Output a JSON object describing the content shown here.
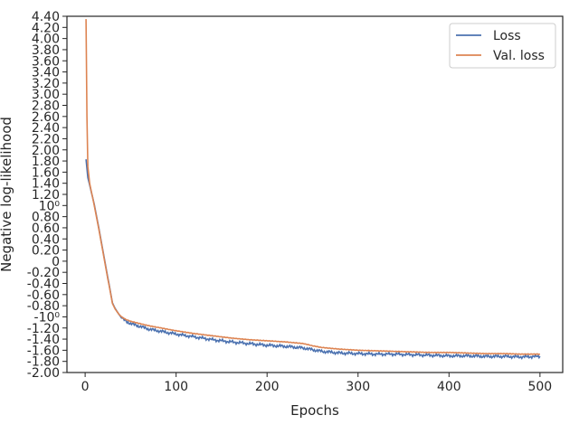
{
  "chart_data": {
    "type": "line",
    "xlabel": "Epochs",
    "ylabel": "Negative log-likelihood",
    "xlim": [
      -20,
      525
    ],
    "ylim": [
      -2.0,
      4.4
    ],
    "y_scale": "symlog",
    "x_ticks": [
      0,
      100,
      200,
      300,
      400,
      500
    ],
    "y_ticks": [
      {
        "value": 4.4,
        "label": "4.40"
      },
      {
        "value": 4.2,
        "label": "4.20"
      },
      {
        "value": 4.0,
        "label": "4.00"
      },
      {
        "value": 3.8,
        "label": "3.80"
      },
      {
        "value": 3.6,
        "label": "3.60"
      },
      {
        "value": 3.4,
        "label": "3.40"
      },
      {
        "value": 3.2,
        "label": "3.20"
      },
      {
        "value": 3.0,
        "label": "3.00"
      },
      {
        "value": 2.8,
        "label": "2.80"
      },
      {
        "value": 2.6,
        "label": "2.60"
      },
      {
        "value": 2.4,
        "label": "2.40"
      },
      {
        "value": 2.2,
        "label": "2.20"
      },
      {
        "value": 2.0,
        "label": "2.00"
      },
      {
        "value": 1.8,
        "label": "1.80"
      },
      {
        "value": 1.6,
        "label": "1.60"
      },
      {
        "value": 1.4,
        "label": "1.40"
      },
      {
        "value": 1.2,
        "label": "1.20"
      },
      {
        "value": 1.0,
        "label": "10⁰"
      },
      {
        "value": 0.8,
        "label": "0.80"
      },
      {
        "value": 0.6,
        "label": "0.60"
      },
      {
        "value": 0.4,
        "label": "0.40"
      },
      {
        "value": 0.2,
        "label": "0.20"
      },
      {
        "value": 0,
        "label": "0"
      },
      {
        "value": -0.2,
        "label": "-0.20"
      },
      {
        "value": -0.4,
        "label": "-0.40"
      },
      {
        "value": -0.6,
        "label": "-0.60"
      },
      {
        "value": -0.8,
        "label": "-0.80"
      },
      {
        "value": -1.0,
        "label": "-10⁰"
      },
      {
        "value": -1.2,
        "label": "-1.20"
      },
      {
        "value": -1.4,
        "label": "-1.40"
      },
      {
        "value": -1.6,
        "label": "-1.60"
      },
      {
        "value": -1.8,
        "label": "-1.80"
      },
      {
        "value": -2.0,
        "label": "-2.00"
      }
    ],
    "grid": false,
    "legend_position": "top-right",
    "series": [
      {
        "name": "Loss",
        "color": "#4c72b0",
        "x": [
          1,
          3,
          6,
          10,
          15,
          20,
          25,
          30,
          33,
          37,
          40,
          45,
          50,
          60,
          70,
          80,
          90,
          100,
          120,
          140,
          160,
          180,
          200,
          220,
          240,
          250,
          260,
          280,
          300,
          320,
          340,
          360,
          380,
          400,
          420,
          440,
          460,
          480,
          500
        ],
        "y": [
          1.83,
          1.5,
          1.3,
          1.02,
          0.6,
          0.15,
          -0.3,
          -0.75,
          -0.85,
          -0.95,
          -1.02,
          -1.08,
          -1.12,
          -1.17,
          -1.22,
          -1.25,
          -1.28,
          -1.31,
          -1.36,
          -1.41,
          -1.45,
          -1.48,
          -1.51,
          -1.53,
          -1.56,
          -1.59,
          -1.62,
          -1.65,
          -1.66,
          -1.67,
          -1.67,
          -1.68,
          -1.69,
          -1.7,
          -1.7,
          -1.71,
          -1.71,
          -1.72,
          -1.71
        ]
      },
      {
        "name": "Val. loss",
        "color": "#dd8452",
        "x": [
          1,
          2,
          3,
          5,
          10,
          15,
          20,
          25,
          30,
          33,
          37,
          40,
          45,
          50,
          60,
          70,
          80,
          90,
          100,
          120,
          140,
          160,
          180,
          200,
          220,
          240,
          250,
          260,
          280,
          300,
          320,
          340,
          360,
          380,
          400,
          420,
          440,
          460,
          480,
          500
        ],
        "y": [
          4.35,
          2.6,
          1.7,
          1.4,
          1.0,
          0.58,
          0.13,
          -0.32,
          -0.76,
          -0.86,
          -0.95,
          -1.0,
          -1.05,
          -1.08,
          -1.12,
          -1.16,
          -1.19,
          -1.22,
          -1.25,
          -1.3,
          -1.34,
          -1.38,
          -1.41,
          -1.43,
          -1.45,
          -1.48,
          -1.52,
          -1.55,
          -1.58,
          -1.6,
          -1.61,
          -1.62,
          -1.63,
          -1.64,
          -1.64,
          -1.65,
          -1.66,
          -1.66,
          -1.67,
          -1.67
        ]
      }
    ]
  }
}
